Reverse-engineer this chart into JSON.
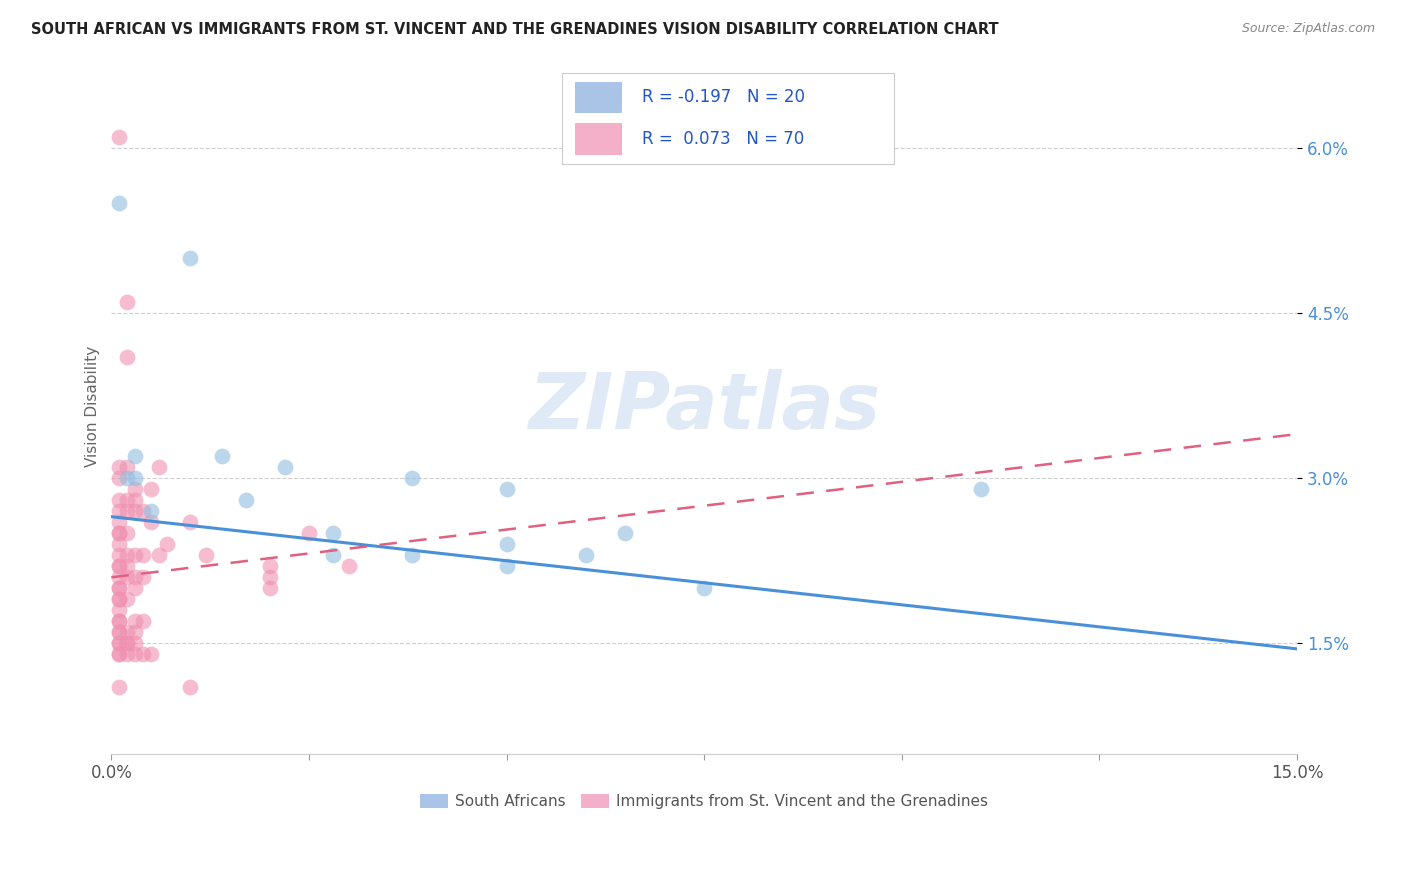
{
  "title": "SOUTH AFRICAN VS IMMIGRANTS FROM ST. VINCENT AND THE GRENADINES VISION DISABILITY CORRELATION CHART",
  "source": "Source: ZipAtlas.com",
  "ylabel": "Vision Disability",
  "ytick_labels": [
    "1.5%",
    "3.0%",
    "4.5%",
    "6.0%"
  ],
  "ytick_values": [
    0.015,
    0.03,
    0.045,
    0.06
  ],
  "xlim": [
    0.0,
    0.15
  ],
  "ylim": [
    0.005,
    0.068
  ],
  "legend_entry1": {
    "color": "#aac4e8",
    "R": "-0.197",
    "N": "20",
    "label": "South Africans"
  },
  "legend_entry2": {
    "color": "#f4b0c8",
    "R": "0.073",
    "N": "70",
    "label": "Immigrants from St. Vincent and the Grenadines"
  },
  "blue_scatter": [
    [
      0.001,
      0.055
    ],
    [
      0.01,
      0.05
    ],
    [
      0.002,
      0.03
    ],
    [
      0.003,
      0.03
    ],
    [
      0.003,
      0.032
    ],
    [
      0.005,
      0.027
    ],
    [
      0.014,
      0.032
    ],
    [
      0.017,
      0.028
    ],
    [
      0.022,
      0.031
    ],
    [
      0.028,
      0.025
    ],
    [
      0.028,
      0.023
    ],
    [
      0.038,
      0.03
    ],
    [
      0.038,
      0.023
    ],
    [
      0.05,
      0.029
    ],
    [
      0.05,
      0.024
    ],
    [
      0.05,
      0.022
    ],
    [
      0.06,
      0.023
    ],
    [
      0.065,
      0.025
    ],
    [
      0.075,
      0.02
    ],
    [
      0.11,
      0.029
    ]
  ],
  "pink_scatter": [
    [
      0.001,
      0.061
    ],
    [
      0.001,
      0.031
    ],
    [
      0.001,
      0.03
    ],
    [
      0.001,
      0.028
    ],
    [
      0.001,
      0.027
    ],
    [
      0.001,
      0.026
    ],
    [
      0.001,
      0.025
    ],
    [
      0.001,
      0.025
    ],
    [
      0.001,
      0.024
    ],
    [
      0.001,
      0.023
    ],
    [
      0.001,
      0.022
    ],
    [
      0.001,
      0.022
    ],
    [
      0.001,
      0.021
    ],
    [
      0.001,
      0.02
    ],
    [
      0.001,
      0.02
    ],
    [
      0.001,
      0.019
    ],
    [
      0.001,
      0.019
    ],
    [
      0.001,
      0.018
    ],
    [
      0.001,
      0.017
    ],
    [
      0.001,
      0.017
    ],
    [
      0.001,
      0.016
    ],
    [
      0.001,
      0.016
    ],
    [
      0.001,
      0.015
    ],
    [
      0.001,
      0.015
    ],
    [
      0.001,
      0.014
    ],
    [
      0.001,
      0.014
    ],
    [
      0.001,
      0.011
    ],
    [
      0.002,
      0.046
    ],
    [
      0.002,
      0.041
    ],
    [
      0.002,
      0.031
    ],
    [
      0.002,
      0.028
    ],
    [
      0.002,
      0.027
    ],
    [
      0.002,
      0.025
    ],
    [
      0.002,
      0.023
    ],
    [
      0.002,
      0.022
    ],
    [
      0.002,
      0.021
    ],
    [
      0.002,
      0.019
    ],
    [
      0.002,
      0.016
    ],
    [
      0.002,
      0.015
    ],
    [
      0.002,
      0.015
    ],
    [
      0.002,
      0.014
    ],
    [
      0.003,
      0.029
    ],
    [
      0.003,
      0.028
    ],
    [
      0.003,
      0.027
    ],
    [
      0.003,
      0.023
    ],
    [
      0.003,
      0.021
    ],
    [
      0.003,
      0.02
    ],
    [
      0.003,
      0.017
    ],
    [
      0.003,
      0.016
    ],
    [
      0.003,
      0.015
    ],
    [
      0.003,
      0.014
    ],
    [
      0.004,
      0.027
    ],
    [
      0.004,
      0.023
    ],
    [
      0.004,
      0.021
    ],
    [
      0.004,
      0.017
    ],
    [
      0.004,
      0.014
    ],
    [
      0.005,
      0.029
    ],
    [
      0.005,
      0.026
    ],
    [
      0.005,
      0.014
    ],
    [
      0.006,
      0.031
    ],
    [
      0.006,
      0.023
    ],
    [
      0.007,
      0.024
    ],
    [
      0.01,
      0.026
    ],
    [
      0.012,
      0.023
    ],
    [
      0.02,
      0.022
    ],
    [
      0.02,
      0.021
    ],
    [
      0.02,
      0.02
    ],
    [
      0.025,
      0.025
    ],
    [
      0.03,
      0.022
    ],
    [
      0.01,
      0.011
    ]
  ],
  "blue_line_x": [
    0.0,
    0.15
  ],
  "blue_line_y_start": 0.0265,
  "blue_line_y_end": 0.0145,
  "pink_line_x": [
    0.0,
    0.15
  ],
  "pink_line_y_start": 0.021,
  "pink_line_y_end": 0.034,
  "watermark": "ZIPatlas",
  "background_color": "#ffffff",
  "grid_color": "#d0d0d0",
  "blue_color": "#90bde0",
  "pink_color": "#f090b0",
  "blue_line_color": "#4a90d9",
  "pink_line_color": "#e06080"
}
